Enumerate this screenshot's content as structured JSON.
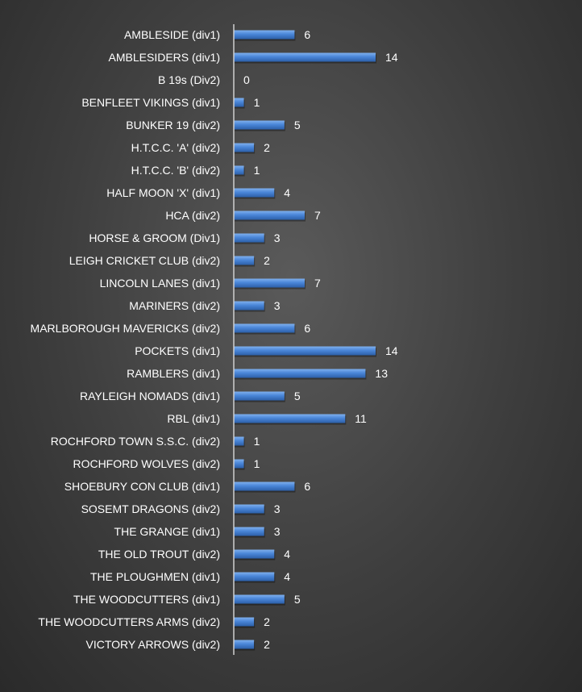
{
  "colors": {
    "bar_top": "#7fb0ee",
    "bar_main": "#4a86d8",
    "bar_bottom": "#2c5fa8",
    "axis": "#cfcfcf",
    "text": "#ffffff",
    "background": "#404040"
  },
  "chart_data": {
    "type": "bar",
    "orientation": "horizontal",
    "title": "",
    "xlabel": "",
    "ylabel": "",
    "xlim": [
      0,
      14
    ],
    "grid": false,
    "legend": "none",
    "data_labels": true,
    "categories": [
      "AMBLESIDE (div1)",
      "AMBLESIDERS (div1)",
      "B 19s (Div2)",
      "BENFLEET VIKINGS (div1)",
      "BUNKER 19 (div2)",
      "H.T.C.C. 'A' (div2)",
      "H.T.C.C. 'B' (div2)",
      "HALF MOON 'X' (div1)",
      "HCA (div2)",
      "HORSE & GROOM (Div1)",
      "LEIGH CRICKET CLUB (div2)",
      "LINCOLN LANES (div1)",
      "MARINERS (div2)",
      "MARLBOROUGH MAVERICKS (div2)",
      "POCKETS (div1)",
      "RAMBLERS (div1)",
      "RAYLEIGH NOMADS (div1)",
      "RBL (div1)",
      "ROCHFORD TOWN S.S.C. (div2)",
      "ROCHFORD WOLVES (div2)",
      "SHOEBURY CON CLUB (div1)",
      "SOSEMT DRAGONS (div2)",
      "THE GRANGE (div1)",
      "THE OLD TROUT (div2)",
      "THE PLOUGHMEN (div1)",
      "THE WOODCUTTERS (div1)",
      "THE WOODCUTTERS ARMS (div2)",
      "VICTORY ARROWS (div2)"
    ],
    "values": [
      6,
      14,
      0,
      1,
      5,
      2,
      1,
      4,
      7,
      3,
      2,
      7,
      3,
      6,
      14,
      13,
      5,
      11,
      1,
      1,
      6,
      3,
      3,
      4,
      4,
      5,
      2,
      2
    ]
  }
}
